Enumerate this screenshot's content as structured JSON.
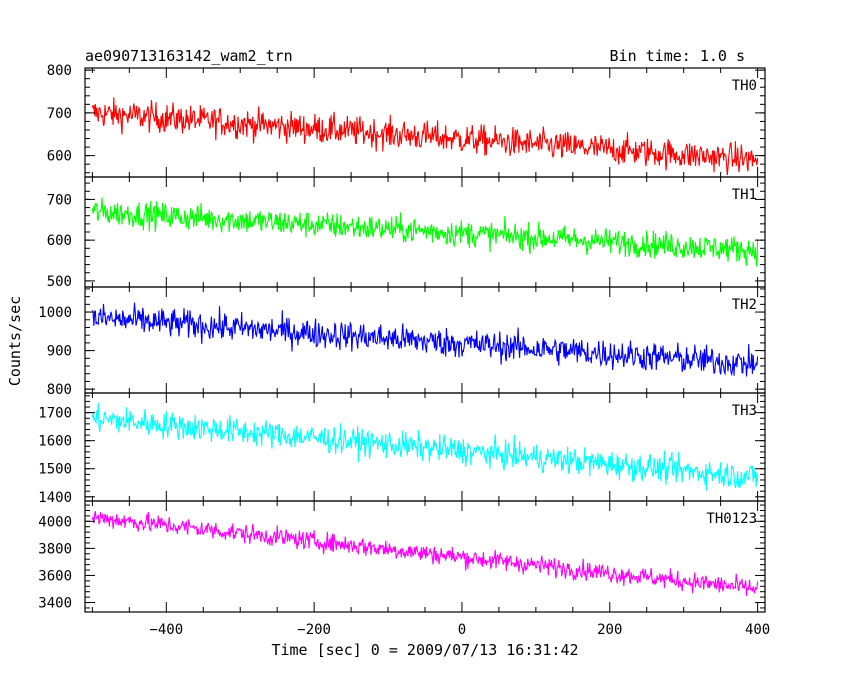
{
  "chart_data": {
    "type": "line",
    "title": "ae090713163142_wam2_trn",
    "subtitle": "Bin time: 1.0 s",
    "xlabel": "Time [sec] 0 = 2009/07/13 16:31:42",
    "ylabel": "Counts/sec",
    "xlim": [
      -510,
      410
    ],
    "xticks": [
      -400,
      -200,
      0,
      200,
      400
    ],
    "bin_time_s": 1.0,
    "panels": [
      {
        "name": "TH0",
        "color": "#ff0000",
        "ylim": [
          550,
          805
        ],
        "yticks": [
          600,
          700,
          800
        ],
        "trend": [
          [
            -500,
            700
          ],
          [
            400,
            590
          ]
        ],
        "noise": 32
      },
      {
        "name": "TH1",
        "color": "#00ff00",
        "ylim": [
          485,
          755
        ],
        "yticks": [
          500,
          600,
          700
        ],
        "trend": [
          [
            -500,
            670
          ],
          [
            400,
            575
          ]
        ],
        "noise": 30
      },
      {
        "name": "TH2",
        "color": "#0000ff",
        "ylim": [
          790,
          1065
        ],
        "yticks": [
          800,
          900,
          1000
        ],
        "trend": [
          [
            -500,
            985
          ],
          [
            400,
            865
          ]
        ],
        "noise": 35
      },
      {
        "name": "TH3",
        "color": "#00ffff",
        "ylim": [
          1385,
          1770
        ],
        "yticks": [
          1400,
          1500,
          1600,
          1700
        ],
        "trend": [
          [
            -500,
            1680
          ],
          [
            400,
            1470
          ]
        ],
        "noise": 45
      },
      {
        "name": "TH0123",
        "color": "#ff00ff",
        "ylim": [
          3330,
          4150
        ],
        "yticks": [
          3400,
          3600,
          3800,
          4000
        ],
        "trend": [
          [
            -500,
            4030
          ],
          [
            400,
            3500
          ]
        ],
        "noise": 65
      }
    ]
  }
}
